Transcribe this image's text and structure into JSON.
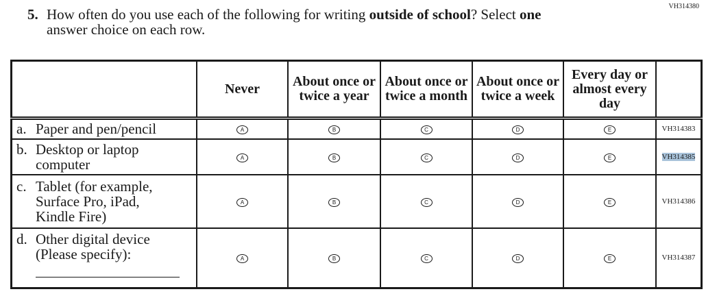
{
  "question_id": "VH314380",
  "question": {
    "number": "5.",
    "text_before": "How often do you use each of the following for writing ",
    "bold1": "outside of school",
    "text_mid": "? Select ",
    "bold2": "one",
    "line2": "answer choice on each row."
  },
  "columns": [
    "Never",
    "About once or twice a year",
    "About once or twice a month",
    "About once or twice a week",
    "Every day or almost every day"
  ],
  "options": [
    "A",
    "B",
    "C",
    "D",
    "E"
  ],
  "rows": [
    {
      "letter": "a.",
      "label": "Paper and pen/pencil",
      "code": "VH314383",
      "highlighted": false
    },
    {
      "letter": "b.",
      "label": "Desktop or laptop computer",
      "code": "VH314385",
      "highlighted": true
    },
    {
      "letter": "c.",
      "label": "Tablet (for example, Surface Pro, iPad, Kindle Fire)",
      "code": "VH314386",
      "highlighted": false
    },
    {
      "letter": "d.",
      "label": "Other digital device (Please specify):",
      "code": "VH314387",
      "highlighted": false
    }
  ],
  "highlight_color": "#a9c3da"
}
